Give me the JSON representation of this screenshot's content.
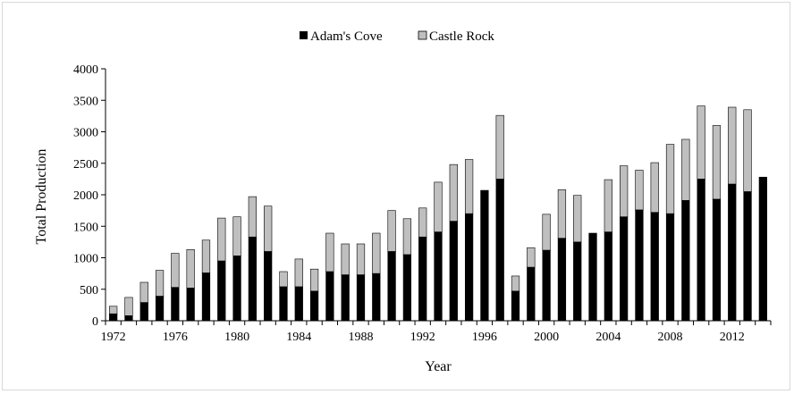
{
  "chart_data": {
    "type": "bar",
    "stacked": true,
    "title": "",
    "xlabel": "Year",
    "ylabel": "Total Production",
    "ylim": [
      0,
      4000
    ],
    "yticks": [
      0,
      500,
      1000,
      1500,
      2000,
      2500,
      3000,
      3500,
      4000
    ],
    "xtick_labels": [
      "1972",
      "1976",
      "1980",
      "1984",
      "1988",
      "1992",
      "1996",
      "2000",
      "2004",
      "2008",
      "2012"
    ],
    "grid": false,
    "legend_position": "top",
    "categories": [
      "1972",
      "1973",
      "1974",
      "1975",
      "1976",
      "1977",
      "1978",
      "1979",
      "1980",
      "1981",
      "1982",
      "1983",
      "1984",
      "1985",
      "1986",
      "1987",
      "1988",
      "1989",
      "1990",
      "1991",
      "1992",
      "1993",
      "1994",
      "1995",
      "1996",
      "1997",
      "1998",
      "1999",
      "2000",
      "2001",
      "2002",
      "2003",
      "2004",
      "2005",
      "2006",
      "2007",
      "2008",
      "2009",
      "2010",
      "2011",
      "2012",
      "2013",
      "2014"
    ],
    "series": [
      {
        "name": "Adam's Cove",
        "color": "#000000",
        "values": [
          110,
          80,
          290,
          390,
          530,
          520,
          760,
          950,
          1030,
          1330,
          1100,
          540,
          540,
          470,
          780,
          730,
          730,
          750,
          1100,
          1050,
          1330,
          1410,
          1580,
          1700,
          2070,
          2250,
          470,
          850,
          1120,
          1310,
          1250,
          1390,
          1410,
          1650,
          1760,
          1720,
          1700,
          1910,
          2250,
          1930,
          2170,
          2050,
          2280
        ]
      },
      {
        "name": "Castle Rock",
        "color": "#bfbfbf",
        "values": [
          120,
          290,
          320,
          410,
          540,
          610,
          520,
          680,
          620,
          640,
          720,
          240,
          440,
          350,
          610,
          490,
          490,
          640,
          650,
          570,
          460,
          790,
          900,
          860,
          0,
          1010,
          240,
          310,
          570,
          770,
          740,
          0,
          830,
          810,
          630,
          790,
          1100,
          970,
          1160,
          1170,
          1220,
          1300,
          0
        ]
      }
    ]
  }
}
